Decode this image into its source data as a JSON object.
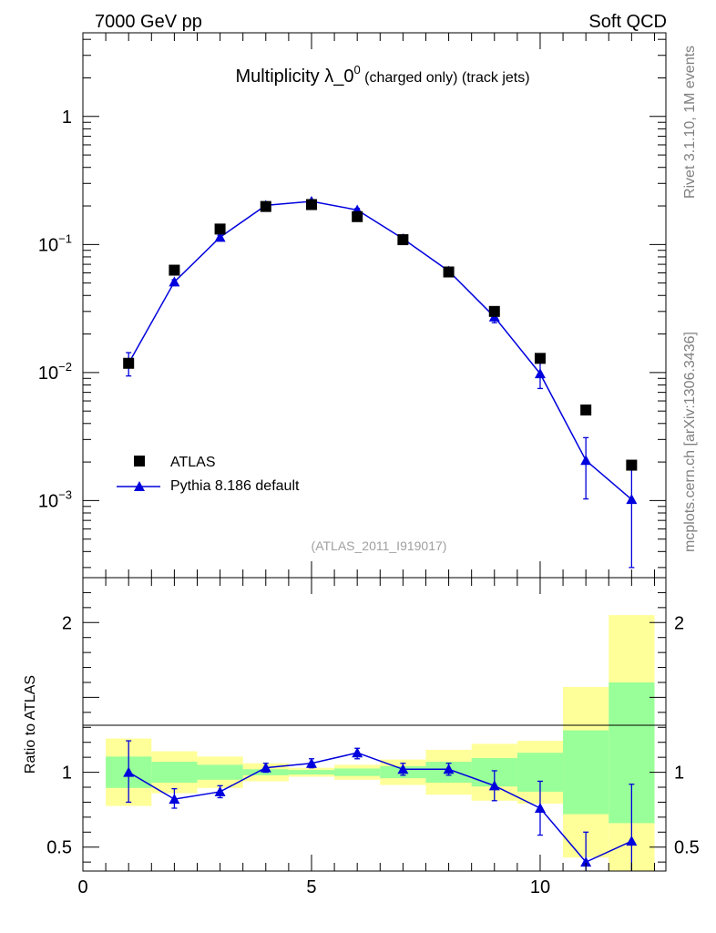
{
  "header": {
    "left": "7000 GeV pp",
    "right": "Soft QCD",
    "title_main": "Multiplicity λ_0",
    "title_sup": "0",
    "title_small": " (charged only) (track jets)"
  },
  "side": {
    "rivet": "Rivet 3.1.10,  1M events",
    "mcplots": "mcplots.cern.ch [arXiv:1306.3436]"
  },
  "watermark": "(ATLAS_2011_I919017)",
  "colors": {
    "data": "#000000",
    "mc": "#0000dd",
    "band_inner": "#99ff99",
    "band_outer": "#ffff99"
  },
  "chart_data": [
    {
      "type": "scatter",
      "yscale": "log",
      "xlim": [
        0,
        12.75
      ],
      "ylim": [
        0.00025,
        4.5
      ],
      "yticks": [
        {
          "value": 1,
          "base": "1",
          "exp": ""
        },
        {
          "value": 0.1,
          "base": "10",
          "exp": "−1"
        },
        {
          "value": 0.01,
          "base": "10",
          "exp": "−2"
        },
        {
          "value": 0.001,
          "base": "10",
          "exp": "−3"
        }
      ],
      "legend_position": "bottom-left",
      "series": [
        {
          "name": "ATLAS",
          "marker": "square",
          "x": [
            1,
            2,
            3,
            4,
            5,
            6,
            7,
            8,
            9,
            10,
            11,
            12
          ],
          "y": [
            0.0118,
            0.063,
            0.132,
            0.198,
            0.205,
            0.165,
            0.109,
            0.061,
            0.03,
            0.0129,
            0.0051,
            0.00189
          ]
        },
        {
          "name": "Pythia 8.186 default",
          "marker": "triangle",
          "x": [
            1,
            2,
            3,
            4,
            5,
            6,
            7,
            8,
            9,
            10,
            11,
            12
          ],
          "y": [
            0.0118,
            0.051,
            0.114,
            0.202,
            0.217,
            0.186,
            0.111,
            0.062,
            0.0272,
            0.0098,
            0.00206,
            0.00102
          ],
          "yerr_low": [
            0.0094,
            0.049,
            0.11,
            0.196,
            0.211,
            0.181,
            0.107,
            0.059,
            0.0245,
            0.0075,
            0.00103,
            0.0003
          ],
          "yerr_high": [
            0.0143,
            0.053,
            0.118,
            0.208,
            0.223,
            0.191,
            0.115,
            0.065,
            0.03,
            0.0121,
            0.0031,
            0.00178
          ]
        }
      ]
    },
    {
      "type": "scatter",
      "ylabel": "Ratio to ATLAS",
      "xlim": [
        0,
        12.75
      ],
      "ylim": [
        0.34,
        2.3
      ],
      "xticks": [
        0,
        5,
        10
      ],
      "yticks": [
        0.5,
        1,
        2
      ],
      "reference_line": 1,
      "bands": [
        {
          "x0": 0.5,
          "x1": 1.5,
          "inner": [
            0.895,
            1.105
          ],
          "outer": [
            0.775,
            1.225
          ]
        },
        {
          "x0": 1.5,
          "x1": 2.5,
          "inner": [
            0.93,
            1.07
          ],
          "outer": [
            0.86,
            1.14
          ]
        },
        {
          "x0": 2.5,
          "x1": 3.5,
          "inner": [
            0.95,
            1.05
          ],
          "outer": [
            0.895,
            1.105
          ]
        },
        {
          "x0": 3.5,
          "x1": 4.5,
          "inner": [
            0.98,
            1.02
          ],
          "outer": [
            0.94,
            1.06
          ]
        },
        {
          "x0": 4.5,
          "x1": 5.5,
          "inner": [
            0.985,
            1.015
          ],
          "outer": [
            0.97,
            1.03
          ]
        },
        {
          "x0": 5.5,
          "x1": 6.5,
          "inner": [
            0.975,
            1.025
          ],
          "outer": [
            0.95,
            1.05
          ]
        },
        {
          "x0": 6.5,
          "x1": 7.5,
          "inner": [
            0.96,
            1.04
          ],
          "outer": [
            0.915,
            1.085
          ]
        },
        {
          "x0": 7.5,
          "x1": 8.5,
          "inner": [
            0.93,
            1.07
          ],
          "outer": [
            0.85,
            1.15
          ]
        },
        {
          "x0": 8.5,
          "x1": 9.5,
          "inner": [
            0.905,
            1.095
          ],
          "outer": [
            0.81,
            1.19
          ]
        },
        {
          "x0": 9.5,
          "x1": 10.5,
          "inner": [
            0.87,
            1.13
          ],
          "outer": [
            0.79,
            1.21
          ]
        },
        {
          "x0": 10.5,
          "x1": 11.5,
          "inner": [
            0.72,
            1.28
          ],
          "outer": [
            0.43,
            1.57
          ]
        },
        {
          "x0": 11.5,
          "x1": 12.5,
          "inner": [
            0.66,
            1.6
          ],
          "outer": [
            0.34,
            2.05
          ]
        }
      ],
      "series": [
        {
          "name": "Pythia 8.186 default",
          "marker": "triangle",
          "x": [
            1,
            2,
            3,
            4,
            5,
            6,
            7,
            8,
            9,
            10,
            11,
            12
          ],
          "y": [
            1.0,
            0.82,
            0.87,
            1.03,
            1.06,
            1.13,
            1.02,
            1.02,
            0.91,
            0.76,
            0.4,
            0.54
          ],
          "yerr_low": [
            0.8,
            0.76,
            0.83,
            1.0,
            1.03,
            1.09,
            0.98,
            0.98,
            0.81,
            0.58,
            0.2,
            0.16
          ],
          "yerr_high": [
            1.21,
            0.89,
            0.91,
            1.06,
            1.09,
            1.16,
            1.06,
            1.06,
            1.01,
            0.94,
            0.6,
            0.92
          ]
        }
      ]
    }
  ]
}
